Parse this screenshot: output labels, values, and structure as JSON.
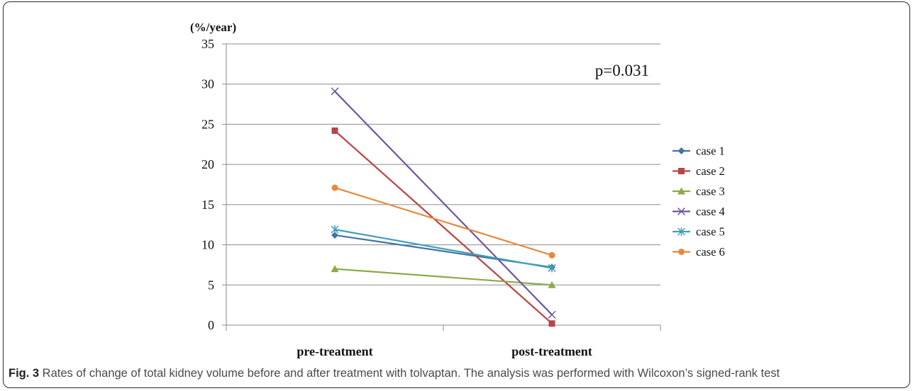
{
  "chart_data": {
    "type": "line",
    "unit_label": "(%/year)",
    "categories": [
      "pre-treatment",
      "post-treatment"
    ],
    "ylim": [
      0,
      35
    ],
    "yticks": [
      0,
      5,
      10,
      15,
      20,
      25,
      30,
      35
    ],
    "annotation": "p=0.031",
    "grid": true,
    "legend_position": "right",
    "series": [
      {
        "name": "case 1",
        "values": [
          11.2,
          7.2
        ],
        "color": "#4472A8",
        "marker": "diamond"
      },
      {
        "name": "case 2",
        "values": [
          24.2,
          0.2
        ],
        "color": "#B84545",
        "marker": "square"
      },
      {
        "name": "case 3",
        "values": [
          7.0,
          5.0
        ],
        "color": "#8BAA48",
        "marker": "triangle"
      },
      {
        "name": "case 4",
        "values": [
          29.1,
          1.3
        ],
        "color": "#70559A",
        "marker": "x"
      },
      {
        "name": "case 5",
        "values": [
          11.9,
          7.1
        ],
        "color": "#3FA0B8",
        "marker": "star"
      },
      {
        "name": "case 6",
        "values": [
          17.1,
          8.7
        ],
        "color": "#E9883A",
        "marker": "circle"
      }
    ]
  },
  "caption": {
    "label": "Fig. 3",
    "text": " Rates of change of total kidney volume before and after treatment with tolvaptan. The analysis was performed with Wilcoxon’s signed-rank test"
  }
}
